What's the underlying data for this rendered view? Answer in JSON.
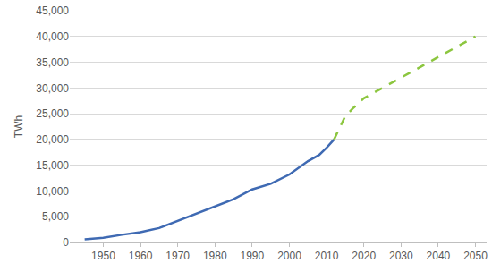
{
  "chart_data": {
    "type": "line",
    "y_label": "TWh",
    "x": [
      1945,
      1950,
      1955,
      1960,
      1965,
      1970,
      1975,
      1980,
      1985,
      1990,
      1995,
      2000,
      2005,
      2008,
      2010,
      2012,
      2015,
      2017,
      2020,
      2025,
      2030,
      2035,
      2040,
      2045,
      2050
    ],
    "series": [
      {
        "color": "#3f6ab3",
        "line_style": "solid",
        "values": [
          600,
          900,
          1500,
          2000,
          2800,
          4200,
          5600,
          7000,
          8400,
          10300,
          11400,
          13200,
          15800,
          17000,
          18400,
          20000,
          null,
          null,
          null,
          null,
          null,
          null,
          null,
          null,
          null
        ]
      },
      {
        "color": "#8cc63f",
        "line_style": "dashed",
        "values": [
          null,
          null,
          null,
          null,
          null,
          null,
          null,
          null,
          null,
          null,
          null,
          null,
          null,
          null,
          null,
          20000,
          24500,
          26000,
          28000,
          30000,
          32000,
          34000,
          36000,
          38000,
          40000
        ]
      }
    ],
    "xlim": [
      1941,
      2053
    ],
    "xticks": [
      1950,
      1960,
      1970,
      1980,
      1990,
      2000,
      2010,
      2020,
      2030,
      2040,
      2050
    ],
    "ylim": [
      0,
      45000
    ],
    "yticks": [
      0,
      {
        "value": 5000,
        "label": "5,000"
      },
      {
        "value": 10000,
        "label": "10,000"
      },
      {
        "value": 15000,
        "label": "15,000"
      },
      {
        "value": 20000,
        "label": "20,000"
      },
      {
        "value": 25000,
        "label": "25,000"
      },
      {
        "value": 30000,
        "label": "30,000"
      },
      {
        "value": 35000,
        "label": "35,000"
      },
      {
        "value": 40000,
        "label": "40,000"
      },
      {
        "value": 45000,
        "label": "45,000"
      }
    ],
    "grid": true
  }
}
